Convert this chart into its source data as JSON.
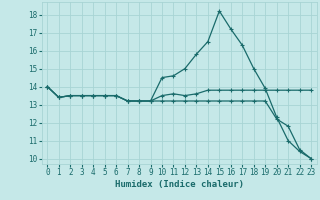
{
  "title": "",
  "xlabel": "Humidex (Indice chaleur)",
  "background_color": "#c5e8e8",
  "grid_color": "#a8d4d4",
  "line_color": "#1a6b6b",
  "x_data": [
    0,
    1,
    2,
    3,
    4,
    5,
    6,
    7,
    8,
    9,
    10,
    11,
    12,
    13,
    14,
    15,
    16,
    17,
    18,
    19,
    20,
    21,
    22,
    23
  ],
  "series": [
    [
      14.0,
      13.4,
      13.5,
      13.5,
      13.5,
      13.5,
      13.5,
      13.2,
      13.2,
      13.2,
      13.5,
      13.6,
      13.5,
      13.6,
      13.8,
      13.8,
      13.8,
      13.8,
      13.8,
      13.8,
      13.8,
      13.8,
      13.8,
      13.8
    ],
    [
      14.0,
      13.4,
      13.5,
      13.5,
      13.5,
      13.5,
      13.5,
      13.2,
      13.2,
      13.2,
      14.5,
      14.6,
      15.0,
      15.8,
      16.5,
      18.2,
      17.2,
      16.3,
      15.0,
      13.9,
      12.3,
      11.0,
      10.4,
      10.0
    ],
    [
      14.0,
      13.4,
      13.5,
      13.5,
      13.5,
      13.5,
      13.5,
      13.2,
      13.2,
      13.2,
      13.2,
      13.2,
      13.2,
      13.2,
      13.2,
      13.2,
      13.2,
      13.2,
      13.2,
      13.2,
      12.2,
      11.8,
      10.5,
      10.0
    ]
  ],
  "xlim": [
    -0.5,
    23.5
  ],
  "ylim": [
    9.7,
    18.7
  ],
  "yticks": [
    10,
    11,
    12,
    13,
    14,
    15,
    16,
    17,
    18
  ],
  "xticks": [
    0,
    1,
    2,
    3,
    4,
    5,
    6,
    7,
    8,
    9,
    10,
    11,
    12,
    13,
    14,
    15,
    16,
    17,
    18,
    19,
    20,
    21,
    22,
    23
  ],
  "tick_fontsize": 5.5,
  "xlabel_fontsize": 6.5,
  "linewidth": 0.9,
  "marker": "+",
  "markersize": 3.0
}
